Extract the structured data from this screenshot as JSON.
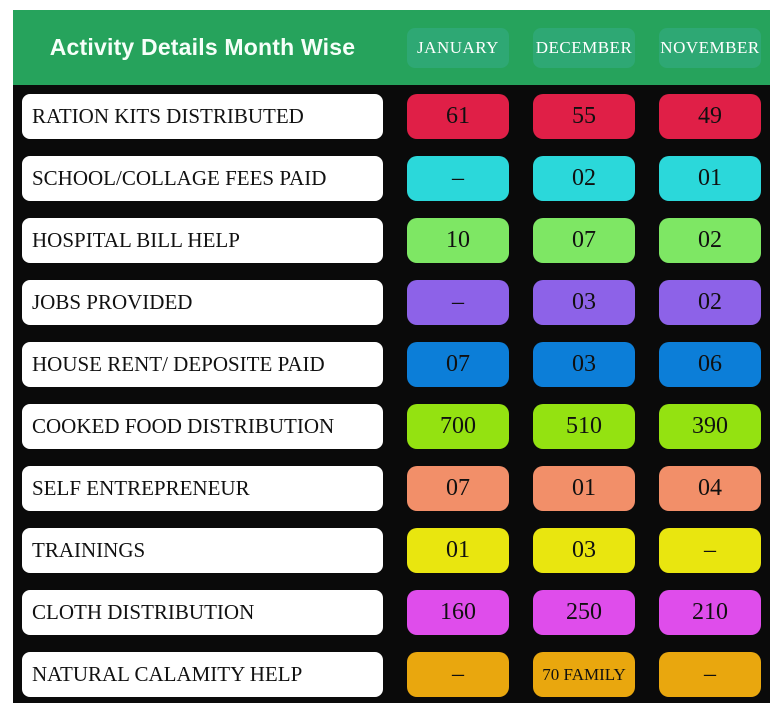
{
  "header": {
    "title": "Activity Details Month Wise",
    "columns": [
      "JANUARY",
      "DECEMBER",
      "NOVEMBER"
    ]
  },
  "rows": [
    {
      "label": "RATION KITS DISTRIBUTED",
      "chip_color": "#e01f47",
      "values": [
        "61",
        "55",
        "49"
      ]
    },
    {
      "label": "SCHOOL/COLLAGE FEES PAID",
      "chip_color": "#2bd8da",
      "values": [
        "–",
        "02",
        "01"
      ]
    },
    {
      "label": "HOSPITAL BILL HELP",
      "chip_color": "#7ee764",
      "values": [
        "10",
        "07",
        "02"
      ]
    },
    {
      "label": "JOBS PROVIDED",
      "chip_color": "#8d62e8",
      "values": [
        "–",
        "03",
        "02"
      ]
    },
    {
      "label": "HOUSE RENT/ DEPOSITE PAID",
      "chip_color": "#0c7ed8",
      "values": [
        "07",
        "03",
        "06"
      ]
    },
    {
      "label": "COOKED FOOD DISTRIBUTION",
      "chip_color": "#94e211",
      "values": [
        "700",
        "510",
        "390"
      ]
    },
    {
      "label": "SELF ENTREPRENEUR",
      "chip_color": "#f28f69",
      "values": [
        "07",
        "01",
        "04"
      ]
    },
    {
      "label": "TRAININGS",
      "chip_color": "#e9e60f",
      "values": [
        "01",
        "03",
        "–"
      ]
    },
    {
      "label": "CLOTH DISTRIBUTION",
      "chip_color": "#df4deb",
      "values": [
        "160",
        "250",
        "210"
      ]
    },
    {
      "label": "NATURAL CALAMITY HELP",
      "chip_color": "#e9a70e",
      "values": [
        "–",
        "70 FAMILY",
        "–"
      ]
    }
  ],
  "colors": {
    "header_background": "#26a35c",
    "month_button_background": "#2ea874",
    "table_background": "#0a0a0a",
    "label_background": "#ffffff",
    "chip_text": "#101010",
    "title_text": "#ffffff"
  },
  "chart_data": {
    "type": "table",
    "title": "Activity Details Month Wise",
    "columns": [
      "JANUARY",
      "DECEMBER",
      "NOVEMBER"
    ],
    "rows": [
      {
        "activity": "RATION KITS DISTRIBUTED",
        "values": [
          "61",
          "55",
          "49"
        ]
      },
      {
        "activity": "SCHOOL/COLLAGE FEES PAID",
        "values": [
          "–",
          "02",
          "01"
        ]
      },
      {
        "activity": "HOSPITAL BILL HELP",
        "values": [
          "10",
          "07",
          "02"
        ]
      },
      {
        "activity": "JOBS PROVIDED",
        "values": [
          "–",
          "03",
          "02"
        ]
      },
      {
        "activity": "HOUSE RENT/ DEPOSITE PAID",
        "values": [
          "07",
          "03",
          "06"
        ]
      },
      {
        "activity": "COOKED FOOD DISTRIBUTION",
        "values": [
          "700",
          "510",
          "390"
        ]
      },
      {
        "activity": "SELF ENTREPRENEUR",
        "values": [
          "07",
          "01",
          "04"
        ]
      },
      {
        "activity": "TRAININGS",
        "values": [
          "01",
          "03",
          "–"
        ]
      },
      {
        "activity": "CLOTH DISTRIBUTION",
        "values": [
          "160",
          "250",
          "210"
        ]
      },
      {
        "activity": "NATURAL CALAMITY HELP",
        "values": [
          "–",
          "70 FAMILY",
          "–"
        ]
      }
    ]
  }
}
